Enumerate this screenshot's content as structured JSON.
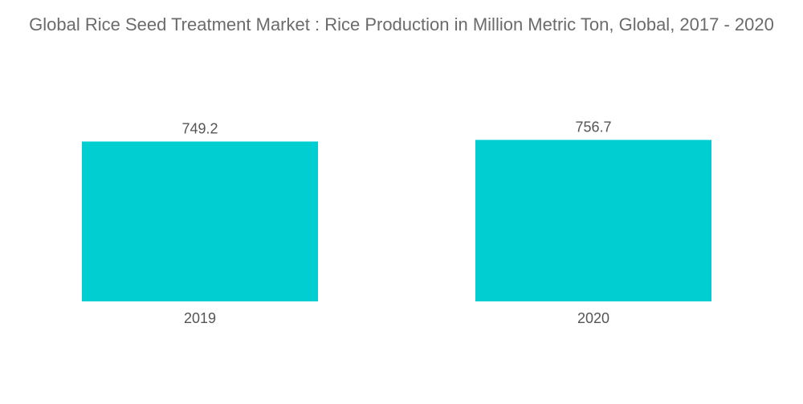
{
  "chart_data": {
    "type": "bar",
    "title": "Global Rice Seed Treatment Market : Rice Production in Million Metric Ton, Global, 2017 - 2020",
    "categories": [
      "2019",
      "2020"
    ],
    "values": [
      749.2,
      756.7
    ],
    "value_labels": [
      "749.2",
      "756.7"
    ],
    "xlabel": "",
    "ylabel": "",
    "ylim": [
      0,
      785
    ],
    "grid": false,
    "legend": "none",
    "bar_color": "#00CED1"
  }
}
